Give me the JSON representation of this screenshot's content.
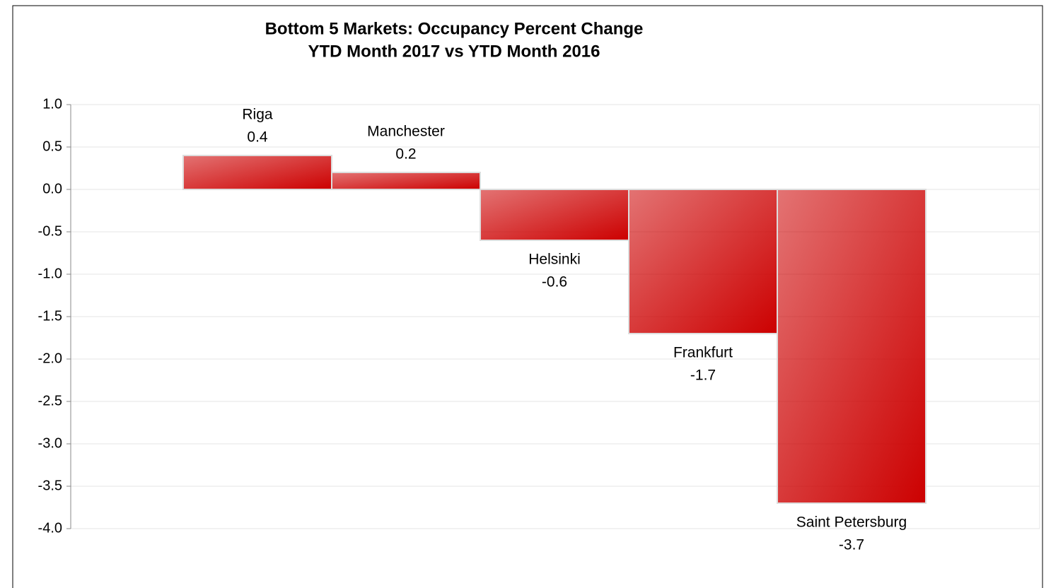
{
  "chart_data": {
    "type": "bar",
    "title": "Bottom 5 Markets: Occupancy Percent Change",
    "subtitle": "YTD Month 2017 vs YTD Month 2016",
    "categories": [
      "Riga",
      "Manchester",
      "Helsinki",
      "Frankfurt",
      "Saint Petersburg"
    ],
    "values": [
      0.4,
      0.2,
      -0.6,
      -1.7,
      -3.7
    ],
    "color": "#cc0000",
    "ylim": [
      -4,
      1
    ],
    "yticks": [
      {
        "value": 1,
        "label": "1.0"
      },
      0.5,
      {
        "value": 0,
        "label": "0.0"
      },
      -0.5,
      {
        "value": -1,
        "label": "-1.0"
      },
      -1.5,
      {
        "value": -2,
        "label": "-2.0"
      },
      -2.5,
      {
        "value": -3,
        "label": "-3.0"
      },
      -3.5,
      {
        "value": -4,
        "label": "-4.0"
      }
    ],
    "grid": true
  }
}
